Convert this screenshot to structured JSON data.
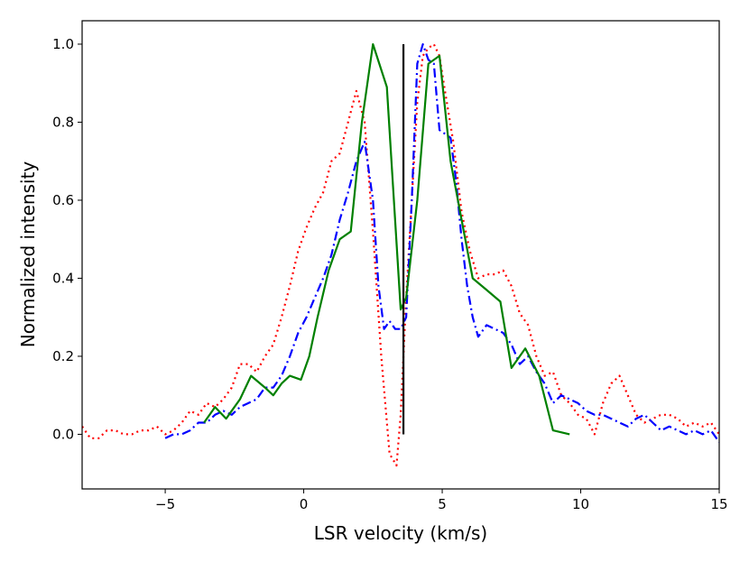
{
  "chart_data": {
    "type": "line",
    "title": "",
    "xlabel": "LSR velocity (km/s)",
    "ylabel": "Normalized intensity",
    "xlim": [
      -8,
      15
    ],
    "ylim": [
      -0.14,
      1.06
    ],
    "xticks": [
      -5,
      0,
      5,
      10,
      15
    ],
    "xtick_labels": [
      "−5",
      "0",
      "5",
      "10",
      "15"
    ],
    "yticks": [
      0.0,
      0.2,
      0.4,
      0.6,
      0.8,
      1.0
    ],
    "ytick_labels": [
      "0.0",
      "0.2",
      "0.4",
      "0.6",
      "0.8",
      "1.0"
    ],
    "grid": false,
    "legend": "none",
    "vertical_marker": {
      "x": 3.6,
      "y_from": 0.0,
      "y_to": 1.0,
      "color": "#000000"
    },
    "series": [
      {
        "name": "red dotted",
        "color": "#ff0000",
        "style": "dotted",
        "x": [
          -8.0,
          -7.7,
          -7.4,
          -7.1,
          -6.8,
          -6.5,
          -6.2,
          -5.9,
          -5.6,
          -5.3,
          -5.0,
          -4.7,
          -4.4,
          -4.1,
          -3.8,
          -3.5,
          -3.2,
          -2.9,
          -2.6,
          -2.3,
          -2.0,
          -1.7,
          -1.4,
          -1.1,
          -0.8,
          -0.5,
          -0.2,
          0.1,
          0.4,
          0.7,
          1.0,
          1.3,
          1.6,
          1.9,
          2.2,
          2.5,
          2.8,
          3.1,
          3.35,
          3.5,
          3.7,
          3.9,
          4.1,
          4.3,
          4.5,
          4.7,
          4.9,
          5.1,
          5.4,
          5.7,
          6.0,
          6.3,
          6.6,
          6.9,
          7.2,
          7.5,
          7.8,
          8.1,
          8.4,
          8.7,
          9.0,
          9.3,
          9.6,
          9.9,
          10.2,
          10.5,
          10.8,
          11.1,
          11.4,
          11.7,
          12.0,
          12.3,
          12.6,
          12.9,
          13.2,
          13.5,
          13.8,
          14.1,
          14.4,
          14.7,
          15.0
        ],
        "y": [
          0.02,
          -0.01,
          -0.01,
          0.01,
          0.01,
          0.0,
          0.0,
          0.01,
          0.01,
          0.02,
          0.0,
          0.01,
          0.03,
          0.06,
          0.05,
          0.08,
          0.07,
          0.09,
          0.12,
          0.18,
          0.18,
          0.16,
          0.2,
          0.23,
          0.3,
          0.38,
          0.47,
          0.53,
          0.58,
          0.62,
          0.7,
          0.72,
          0.8,
          0.88,
          0.8,
          0.52,
          0.2,
          -0.05,
          -0.08,
          0.05,
          0.35,
          0.6,
          0.85,
          0.97,
          0.99,
          1.0,
          0.97,
          0.88,
          0.75,
          0.57,
          0.47,
          0.4,
          0.41,
          0.41,
          0.42,
          0.38,
          0.31,
          0.28,
          0.2,
          0.15,
          0.16,
          0.1,
          0.08,
          0.05,
          0.04,
          0.0,
          0.08,
          0.13,
          0.15,
          0.1,
          0.05,
          0.03,
          0.04,
          0.05,
          0.05,
          0.04,
          0.02,
          0.03,
          0.02,
          0.03,
          0.0
        ]
      },
      {
        "name": "blue dash-dot",
        "color": "#0000ff",
        "style": "dashdot",
        "x": [
          -5.0,
          -4.7,
          -4.4,
          -4.1,
          -3.8,
          -3.5,
          -3.2,
          -2.9,
          -2.6,
          -2.3,
          -2.0,
          -1.7,
          -1.4,
          -1.1,
          -0.8,
          -0.5,
          -0.2,
          0.1,
          0.4,
          0.7,
          1.0,
          1.3,
          1.6,
          1.9,
          2.2,
          2.5,
          2.7,
          2.9,
          3.1,
          3.3,
          3.5,
          3.7,
          3.9,
          4.1,
          4.3,
          4.5,
          4.7,
          4.9,
          5.1,
          5.3,
          5.5,
          5.7,
          5.9,
          6.1,
          6.3,
          6.6,
          6.9,
          7.2,
          7.5,
          7.8,
          8.1,
          8.4,
          8.7,
          9.0,
          9.3,
          9.6,
          9.9,
          10.2,
          10.5,
          10.8,
          11.1,
          11.4,
          11.7,
          12.0,
          12.3,
          12.6,
          12.9,
          13.2,
          13.5,
          13.8,
          14.1,
          14.4,
          14.7,
          15.0
        ],
        "y": [
          -0.01,
          0.0,
          0.0,
          0.01,
          0.03,
          0.03,
          0.05,
          0.06,
          0.05,
          0.07,
          0.08,
          0.09,
          0.12,
          0.12,
          0.15,
          0.2,
          0.26,
          0.3,
          0.35,
          0.4,
          0.46,
          0.55,
          0.62,
          0.7,
          0.75,
          0.6,
          0.38,
          0.27,
          0.29,
          0.27,
          0.27,
          0.3,
          0.6,
          0.95,
          1.0,
          0.96,
          0.95,
          0.78,
          0.77,
          0.76,
          0.65,
          0.5,
          0.38,
          0.3,
          0.25,
          0.28,
          0.27,
          0.26,
          0.23,
          0.18,
          0.2,
          0.16,
          0.13,
          0.08,
          0.1,
          0.09,
          0.08,
          0.06,
          0.05,
          0.05,
          0.04,
          0.03,
          0.02,
          0.04,
          0.05,
          0.03,
          0.01,
          0.02,
          0.01,
          0.0,
          0.01,
          0.0,
          0.01,
          -0.02
        ]
      },
      {
        "name": "green solid",
        "color": "#008000",
        "style": "solid",
        "x": [
          -3.6,
          -3.2,
          -2.8,
          -2.3,
          -1.9,
          -1.4,
          -1.1,
          -0.8,
          -0.5,
          -0.1,
          0.2,
          0.5,
          0.9,
          1.3,
          1.7,
          2.1,
          2.5,
          3.0,
          3.5,
          3.7,
          4.1,
          4.5,
          4.9,
          5.3,
          5.7,
          6.1,
          6.6,
          7.1,
          7.5,
          8.0,
          8.5,
          9.0,
          9.6
        ],
        "y": [
          0.03,
          0.07,
          0.04,
          0.09,
          0.15,
          0.12,
          0.1,
          0.13,
          0.15,
          0.14,
          0.2,
          0.3,
          0.42,
          0.5,
          0.52,
          0.8,
          1.0,
          0.89,
          0.32,
          0.35,
          0.6,
          0.95,
          0.97,
          0.7,
          0.55,
          0.4,
          0.37,
          0.34,
          0.17,
          0.22,
          0.15,
          0.01,
          0.0
        ]
      }
    ]
  }
}
